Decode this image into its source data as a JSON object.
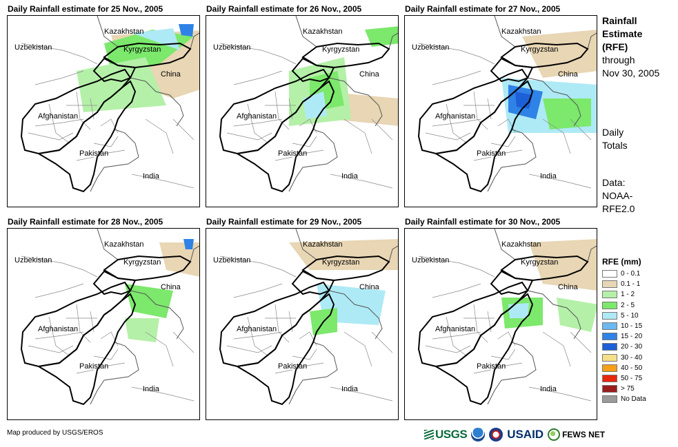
{
  "panels": [
    {
      "title": "Daily Rainfall estimate for 25 Nov., 2005",
      "rain": [
        {
          "c": "#e8d6b4",
          "pts": [
            [
              150,
              28
            ],
            [
              300,
              20
            ],
            [
              300,
              100
            ],
            [
              240,
              120
            ],
            [
              170,
              95
            ]
          ]
        },
        {
          "c": "#7ce86c",
          "pts": [
            [
              140,
              40
            ],
            [
              210,
              20
            ],
            [
              270,
              30
            ],
            [
              220,
              70
            ],
            [
              150,
              80
            ]
          ]
        },
        {
          "c": "#b4f0a8",
          "pts": [
            [
              100,
              80
            ],
            [
              200,
              60
            ],
            [
              230,
              130
            ],
            [
              110,
              140
            ]
          ]
        },
        {
          "c": "#aeeaf5",
          "pts": [
            [
              180,
              25
            ],
            [
              240,
              18
            ],
            [
              250,
              50
            ]
          ]
        },
        {
          "c": "#2f82e6",
          "pts": [
            [
              248,
              12
            ],
            [
              270,
              12
            ],
            [
              268,
              30
            ],
            [
              252,
              28
            ]
          ]
        }
      ]
    },
    {
      "title": "Daily Rainfall estimate for 26 Nov., 2005",
      "rain": [
        {
          "c": "#e8d6b4",
          "pts": [
            [
              170,
              110
            ],
            [
              280,
              120
            ],
            [
              280,
              160
            ],
            [
              180,
              150
            ]
          ]
        },
        {
          "c": "#b4f0a8",
          "pts": [
            [
              120,
              80
            ],
            [
              200,
              60
            ],
            [
              210,
              150
            ],
            [
              120,
              160
            ]
          ]
        },
        {
          "c": "#7ce86c",
          "pts": [
            [
              150,
              90
            ],
            [
              190,
              80
            ],
            [
              200,
              130
            ],
            [
              150,
              140
            ]
          ]
        },
        {
          "c": "#7ce86c",
          "pts": [
            [
              230,
              20
            ],
            [
              280,
              15
            ],
            [
              280,
              40
            ],
            [
              240,
              45
            ]
          ]
        },
        {
          "c": "#aeeaf5",
          "pts": [
            [
              140,
              120
            ],
            [
              170,
              110
            ],
            [
              175,
              145
            ],
            [
              145,
              150
            ]
          ]
        }
      ]
    },
    {
      "title": "Daily Rainfall estimate for 27 Nov., 2005",
      "rain": [
        {
          "c": "#aeeaf5",
          "pts": [
            [
              140,
              90
            ],
            [
              280,
              100
            ],
            [
              280,
              170
            ],
            [
              150,
              170
            ]
          ]
        },
        {
          "c": "#7ce86c",
          "pts": [
            [
              200,
              120
            ],
            [
              270,
              120
            ],
            [
              270,
              160
            ],
            [
              210,
              165
            ]
          ]
        },
        {
          "c": "#2f82e6",
          "pts": [
            [
              150,
              100
            ],
            [
              200,
              110
            ],
            [
              190,
              150
            ],
            [
              150,
              140
            ]
          ]
        },
        {
          "c": "#1c5fd6",
          "pts": [
            [
              160,
              110
            ],
            [
              185,
              115
            ],
            [
              180,
              135
            ],
            [
              162,
              132
            ]
          ]
        },
        {
          "c": "#e8d6b4",
          "pts": [
            [
              170,
              30
            ],
            [
              280,
              20
            ],
            [
              280,
              80
            ],
            [
              200,
              90
            ]
          ]
        }
      ]
    },
    {
      "title": "Daily Rainfall estimate for 28 Nov., 2005",
      "rain": [
        {
          "c": "#e8d6b4",
          "pts": [
            [
              220,
              20
            ],
            [
              280,
              20
            ],
            [
              280,
              70
            ],
            [
              230,
              60
            ]
          ]
        },
        {
          "c": "#7ce86c",
          "pts": [
            [
              170,
              80
            ],
            [
              240,
              90
            ],
            [
              230,
              130
            ],
            [
              180,
              120
            ]
          ]
        },
        {
          "c": "#b4f0a8",
          "pts": [
            [
              170,
              130
            ],
            [
              220,
              130
            ],
            [
              215,
              165
            ],
            [
              175,
              160
            ]
          ]
        },
        {
          "c": "#2f82e6",
          "pts": [
            [
              255,
              15
            ],
            [
              270,
              15
            ],
            [
              268,
              30
            ],
            [
              258,
              30
            ]
          ]
        }
      ]
    },
    {
      "title": "Daily Rainfall estimate for 29 Nov., 2005",
      "rain": [
        {
          "c": "#e8d6b4",
          "pts": [
            [
              120,
              20
            ],
            [
              280,
              15
            ],
            [
              280,
              60
            ],
            [
              150,
              60
            ]
          ]
        },
        {
          "c": "#2f82e6",
          "pts": [
            [
              180,
              90
            ],
            [
              240,
              95
            ],
            [
              235,
              130
            ],
            [
              185,
              125
            ]
          ]
        },
        {
          "c": "#aeeaf5",
          "pts": [
            [
              160,
              80
            ],
            [
              260,
              90
            ],
            [
              250,
              140
            ],
            [
              170,
              135
            ]
          ]
        },
        {
          "c": "#7ce86c",
          "pts": [
            [
              150,
              120
            ],
            [
              190,
              115
            ],
            [
              190,
              150
            ],
            [
              155,
              155
            ]
          ]
        }
      ]
    },
    {
      "title": "Daily Rainfall estimate for 30 Nov., 2005",
      "rain": [
        {
          "c": "#e8d6b4",
          "pts": [
            [
              180,
              20
            ],
            [
              280,
              15
            ],
            [
              280,
              90
            ],
            [
              200,
              80
            ]
          ]
        },
        {
          "c": "#7ce86c",
          "pts": [
            [
              140,
              100
            ],
            [
              200,
              100
            ],
            [
              200,
              140
            ],
            [
              145,
              145
            ]
          ]
        },
        {
          "c": "#b4f0a8",
          "pts": [
            [
              220,
              100
            ],
            [
              280,
              110
            ],
            [
              270,
              150
            ],
            [
              225,
              140
            ]
          ]
        },
        {
          "c": "#aeeaf5",
          "pts": [
            [
              150,
              110
            ],
            [
              180,
              108
            ],
            [
              178,
              130
            ],
            [
              152,
              130
            ]
          ]
        }
      ]
    }
  ],
  "country_labels": [
    "Kazakhstan",
    "Uzbekistan",
    "Kyrgyzstan",
    "China",
    "Afghanistan",
    "Pakistan",
    "India"
  ],
  "side": {
    "title1": "Rainfall",
    "title2": "Estimate",
    "title3": "(RFE)",
    "line1": "through",
    "line2": "Nov 30, 2005",
    "daily1": "Daily",
    "daily2": "Totals",
    "data1": "Data:",
    "data2": "NOAA-",
    "data3": "RFE2.0"
  },
  "legend": {
    "title": "RFE (mm)",
    "items": [
      {
        "label": "0 - 0.1",
        "color": "#ffffff"
      },
      {
        "label": "0.1 - 1",
        "color": "#e8d6b4"
      },
      {
        "label": "1 - 2",
        "color": "#b4f0a8"
      },
      {
        "label": "2 - 5",
        "color": "#7ce86c"
      },
      {
        "label": "5 - 10",
        "color": "#aeeaf5"
      },
      {
        "label": "10 - 15",
        "color": "#6cb8f0"
      },
      {
        "label": "15 - 20",
        "color": "#2f82e6"
      },
      {
        "label": "20 - 30",
        "color": "#1c5fd6"
      },
      {
        "label": "30 - 40",
        "color": "#f5e08a"
      },
      {
        "label": "40 - 50",
        "color": "#f5a018"
      },
      {
        "label": "50 - 75",
        "color": "#e8280c"
      },
      {
        "label": "> 75",
        "color": "#9c1c1c"
      },
      {
        "label": "No Data",
        "color": "#9a9a9a"
      }
    ]
  },
  "credit": "Map produced by USGS/EROS",
  "logos": {
    "usgs": "USGS",
    "usaid": "USAID",
    "fews": "FEWS NET"
  }
}
